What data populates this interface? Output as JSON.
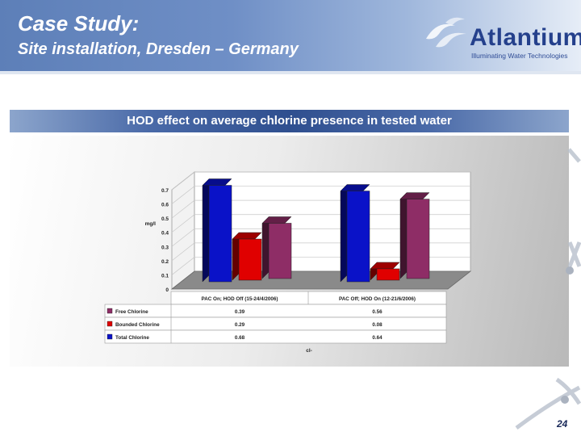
{
  "slide": {
    "title_line1": "Case Study:",
    "title_line2": "Site installation, Dresden – Germany",
    "page_number": "24"
  },
  "logo": {
    "name": "Atlantium",
    "tagline": "Illuminating Water Technologies"
  },
  "colors": {
    "free_chlorine": "#8e2d66",
    "bounded_chlorine": "#e00000",
    "total_chlorine": "#0a12c8"
  },
  "chart_data": {
    "type": "bar",
    "title": "HOD effect on average chlorine presence in tested water",
    "ylabel": "mg/l",
    "xlabel": "cl-",
    "ylim": [
      0,
      0.7
    ],
    "yticks": [
      "0",
      "0.1",
      "0.2",
      "0.3",
      "0.4",
      "0.5",
      "0.6",
      "0.7"
    ],
    "grid": true,
    "categories": [
      "PAC On; HOD Off (15-24/4/2006)",
      "PAC Off; HOD On (12-21/6/2006)"
    ],
    "series": [
      {
        "name": "Free Chlorine",
        "values": [
          0.39,
          0.56
        ],
        "labels": [
          "0.39",
          "0.56"
        ]
      },
      {
        "name": "Bounded Chlorine",
        "values": [
          0.29,
          0.08
        ],
        "labels": [
          "0.29",
          "0.08"
        ]
      },
      {
        "name": "Total Chlorine",
        "values": [
          0.68,
          0.64
        ],
        "labels": [
          "0.68",
          "0.64"
        ]
      }
    ]
  }
}
